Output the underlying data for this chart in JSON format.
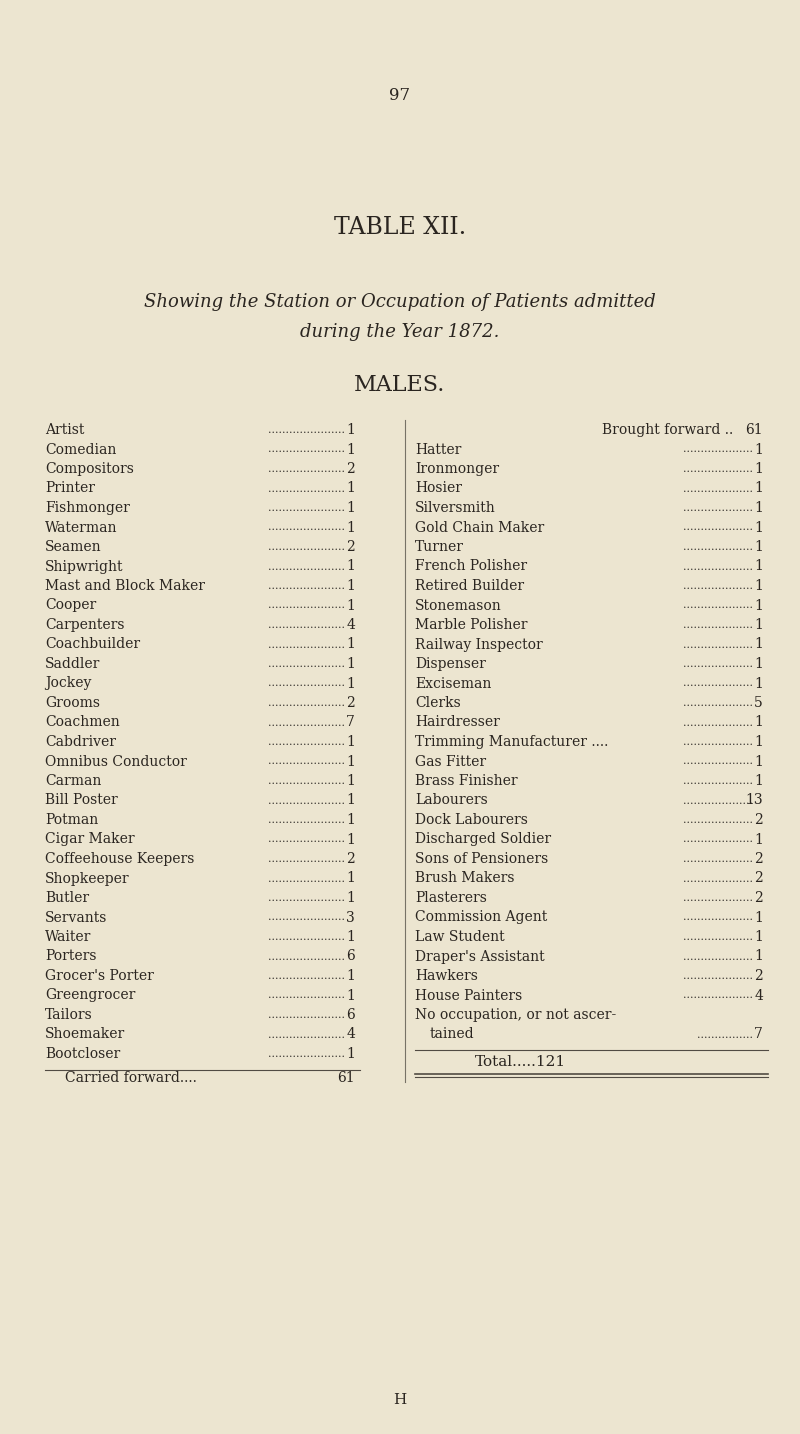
{
  "page_number": "97",
  "title": "TABLE XII.",
  "subtitle_line1": "Showing the Station or Occupation of Patients admitted",
  "subtitle_line2": "during the Year 1872.",
  "section_title": "MALES.",
  "bg_color": "#ece5d0",
  "text_color": "#2a2520",
  "left_column": [
    [
      "Artist",
      "1"
    ],
    [
      "Comedian",
      "1"
    ],
    [
      "Compositors",
      "2"
    ],
    [
      "Printer",
      "1"
    ],
    [
      "Fishmonger",
      "1"
    ],
    [
      "Waterman",
      "1"
    ],
    [
      "Seamen",
      "2"
    ],
    [
      "Shipwright",
      "1"
    ],
    [
      "Mast and Block Maker",
      "1"
    ],
    [
      "Cooper",
      "1"
    ],
    [
      "Carpenters",
      "4"
    ],
    [
      "Coachbuilder",
      "1"
    ],
    [
      "Saddler",
      "1"
    ],
    [
      "Jockey",
      "1"
    ],
    [
      "Grooms",
      "2"
    ],
    [
      "Coachmen",
      "7"
    ],
    [
      "Cabdriver",
      "1"
    ],
    [
      "Omnibus Conductor",
      "1"
    ],
    [
      "Carman",
      "1"
    ],
    [
      "Bill Poster",
      "1"
    ],
    [
      "Potman",
      "1"
    ],
    [
      "Cigar Maker",
      "1"
    ],
    [
      "Coffeehouse Keepers",
      "2"
    ],
    [
      "Shopkeeper",
      "1"
    ],
    [
      "Butler",
      "1"
    ],
    [
      "Servants",
      "3"
    ],
    [
      "Waiter",
      "1"
    ],
    [
      "Porters",
      "6"
    ],
    [
      "Grocer's Porter",
      "1"
    ],
    [
      "Greengrocer",
      "1"
    ],
    [
      "Tailors",
      "6"
    ],
    [
      "Shoemaker",
      "4"
    ],
    [
      "Bootcloser",
      "1"
    ]
  ],
  "carried_forward": "61",
  "right_column": [
    [
      "Brought forward ..",
      "61"
    ],
    [
      "Hatter",
      "1"
    ],
    [
      "Ironmonger",
      "1"
    ],
    [
      "Hosier",
      "1"
    ],
    [
      "Silversmith",
      "1"
    ],
    [
      "Gold Chain Maker",
      "1"
    ],
    [
      "Turner",
      "1"
    ],
    [
      "French Polisher",
      "1"
    ],
    [
      "Retired Builder",
      "1"
    ],
    [
      "Stonemason",
      "1"
    ],
    [
      "Marble Polisher",
      "1"
    ],
    [
      "Railway Inspector",
      "1"
    ],
    [
      "Dispenser",
      "1"
    ],
    [
      "Exciseman",
      "1"
    ],
    [
      "Clerks",
      "5"
    ],
    [
      "Hairdresser",
      "1"
    ],
    [
      "Trimming Manufacturer ....",
      "1"
    ],
    [
      "Gas Fitter",
      "1"
    ],
    [
      "Brass Finisher",
      "1"
    ],
    [
      "Labourers",
      "13"
    ],
    [
      "Dock Labourers",
      "2"
    ],
    [
      "Discharged Soldier",
      "1"
    ],
    [
      "Sons of Pensioners",
      "2"
    ],
    [
      "Brush Makers",
      "2"
    ],
    [
      "Plasterers",
      "2"
    ],
    [
      "Commission Agent",
      "1"
    ],
    [
      "Law Student",
      "1"
    ],
    [
      "Draper's Assistant",
      "1"
    ],
    [
      "Hawkers",
      "2"
    ],
    [
      "House Painters",
      "4"
    ],
    [
      "No occupation, or not ascer-",
      ""
    ],
    [
      "    tained",
      "7"
    ]
  ],
  "total_label": "Total.....",
  "total_value": "121",
  "footer": "H"
}
